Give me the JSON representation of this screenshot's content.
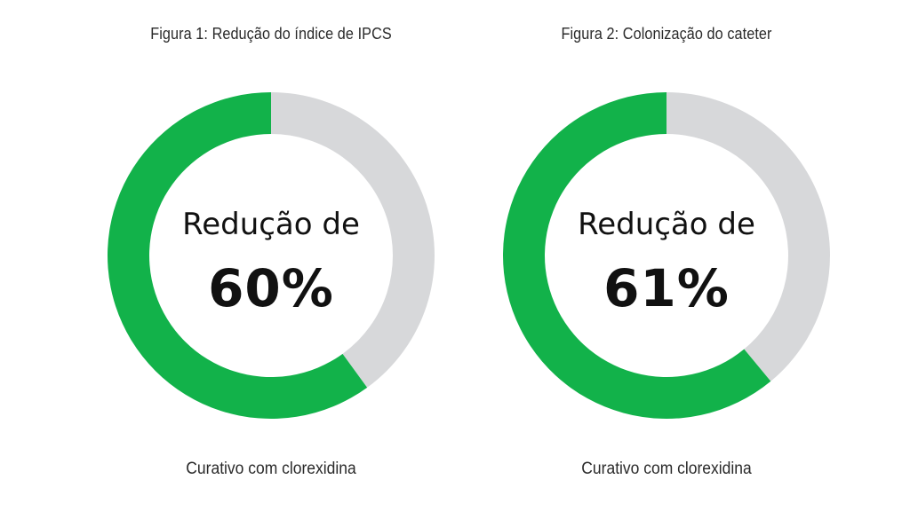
{
  "colors": {
    "accent_green": "#12b24a",
    "track_gray": "#d7d8da",
    "text_dark": "#111111"
  },
  "chart_data": [
    {
      "type": "pie",
      "title": "Figura 1: Redução do índice de IPCS",
      "center_label": "Redução de",
      "center_value": "60%",
      "caption": "Curativo com clorexidina",
      "values": [
        60,
        40
      ],
      "value_unit": "%"
    },
    {
      "type": "pie",
      "title": "Figura 2: Colonização do cateter",
      "center_label": "Redução de",
      "center_value": "61%",
      "caption": "Curativo com clorexidina",
      "values": [
        61,
        39
      ],
      "value_unit": "%"
    }
  ]
}
